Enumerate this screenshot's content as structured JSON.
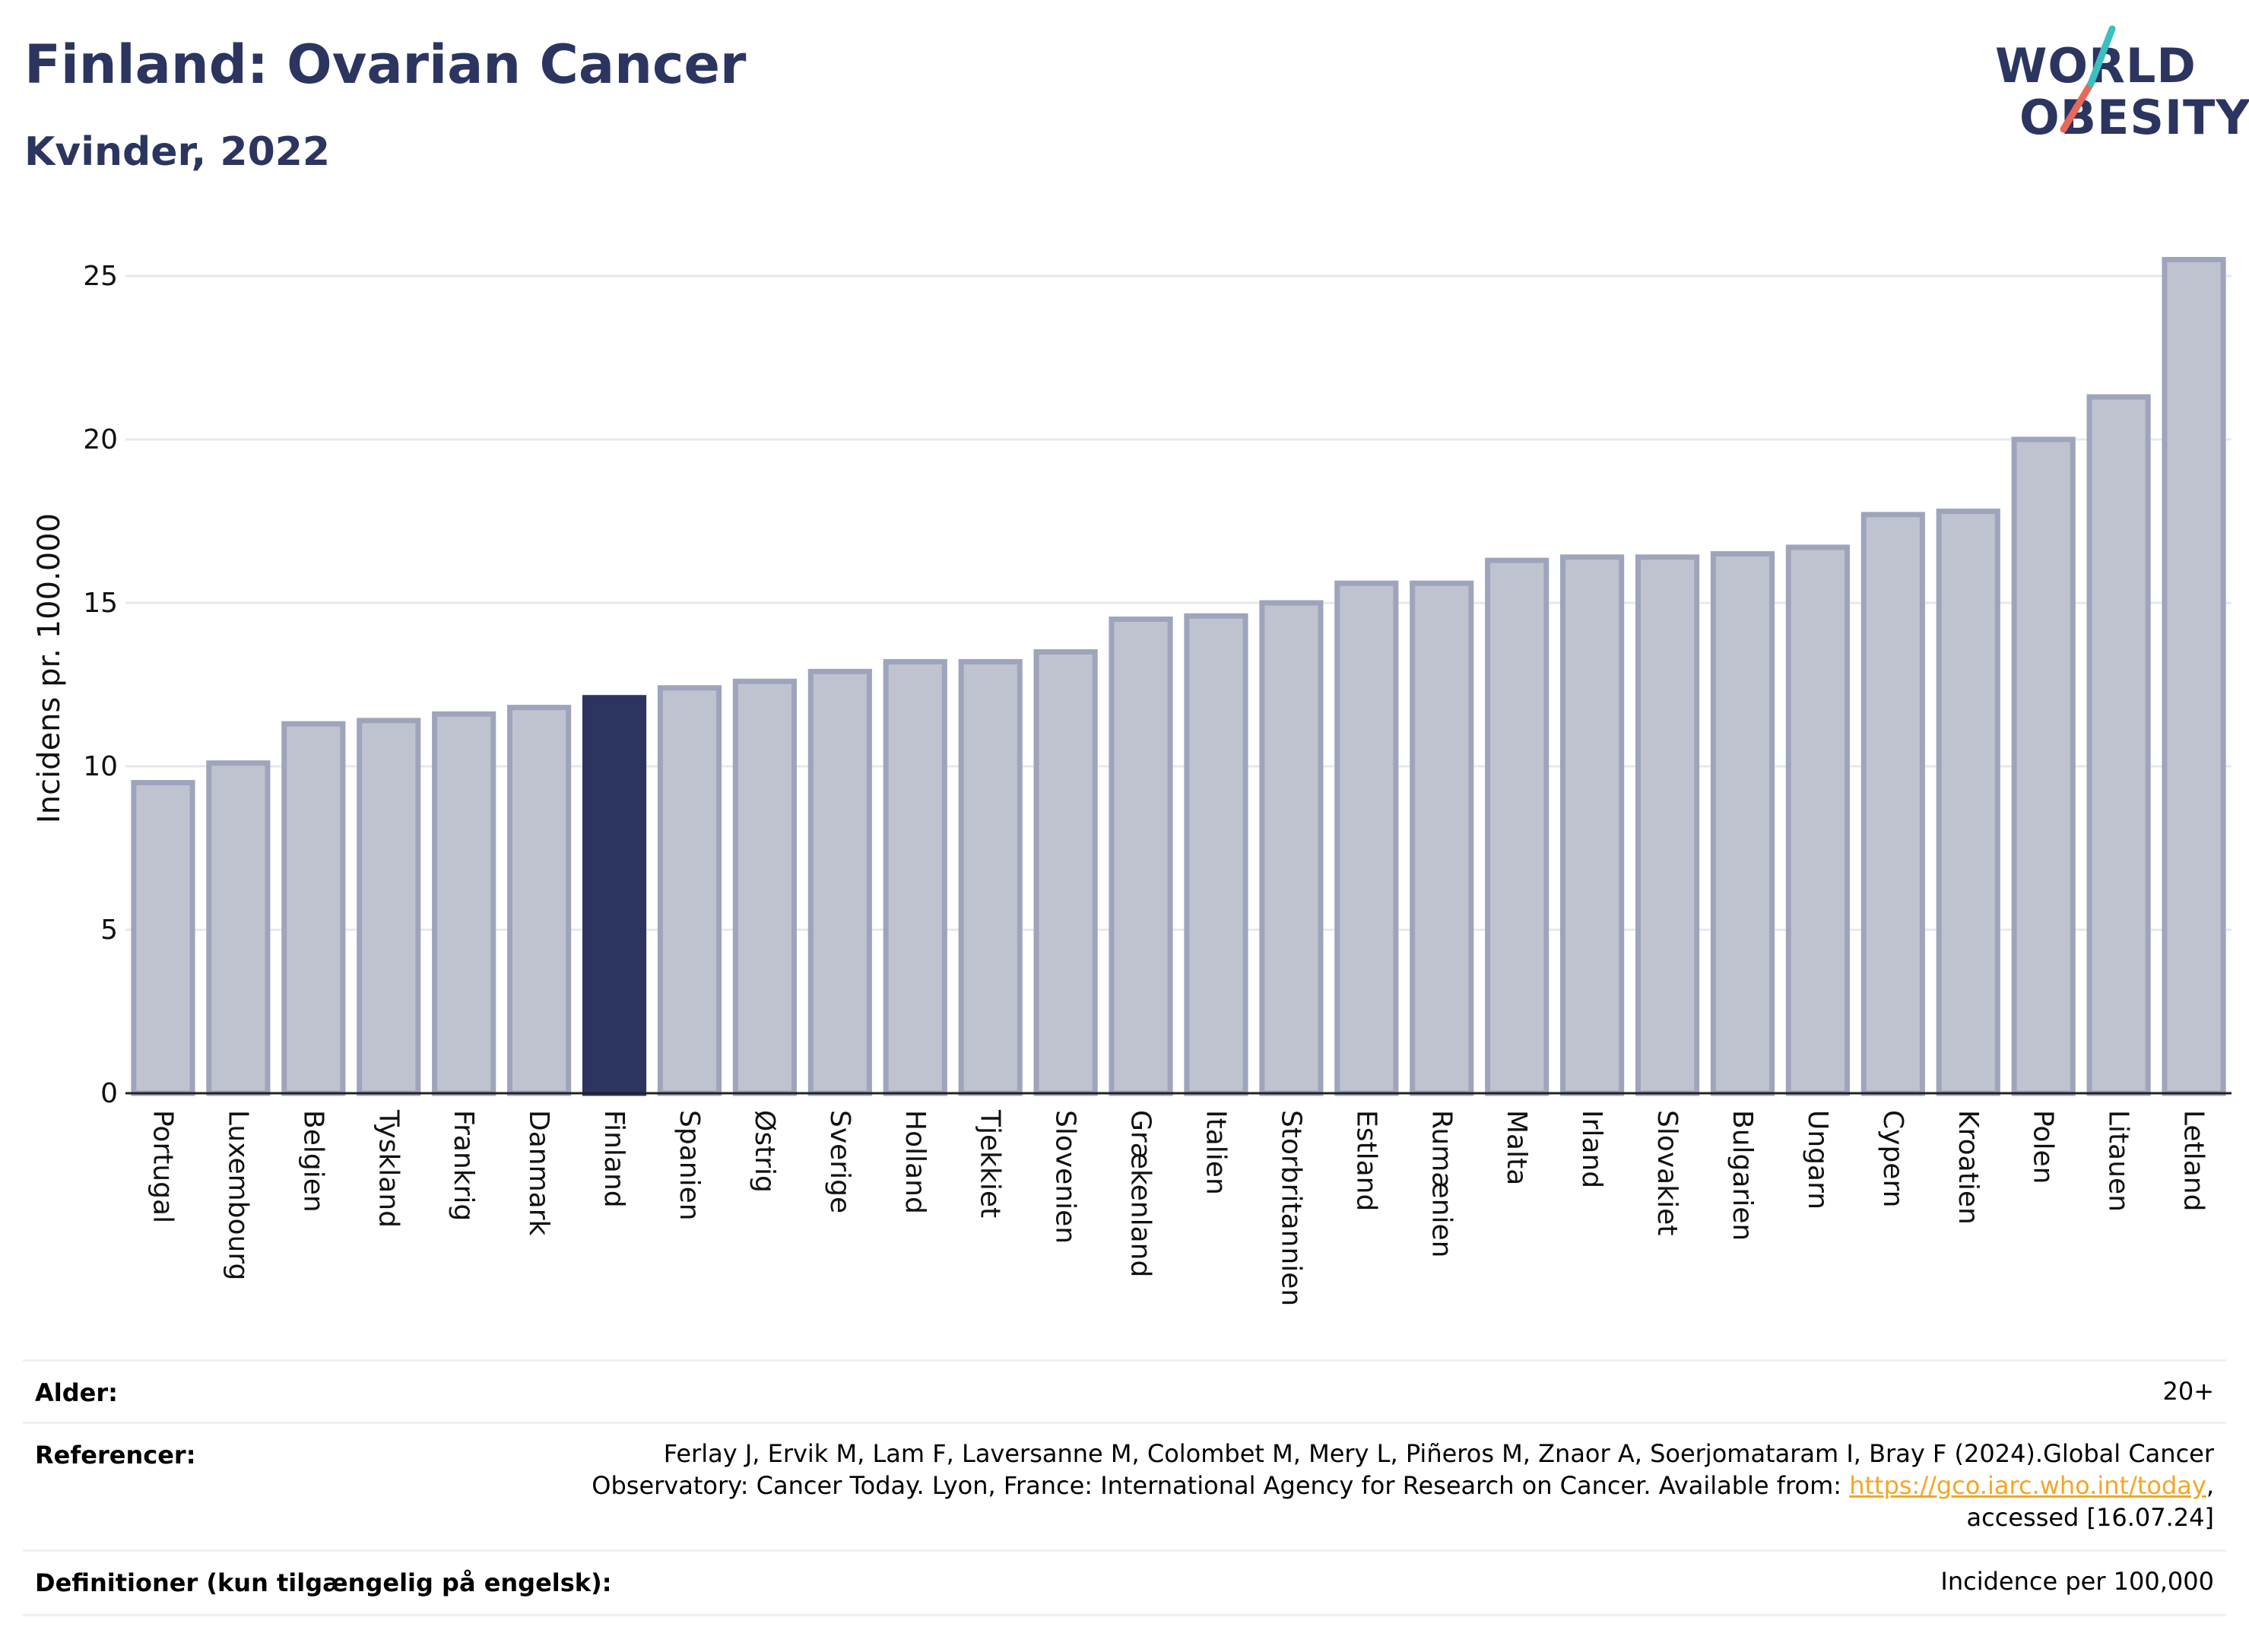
{
  "header": {
    "title": "Finland: Ovarian Cancer",
    "subtitle": "Kvinder, 2022"
  },
  "logo": {
    "line1": "WORLD",
    "line2": "OBESITY"
  },
  "colors": {
    "highlight": "#2b3560",
    "bar": "#bfc3d0",
    "bar_stroke": "#9ea4bc",
    "grid": "#e6e8f0"
  },
  "chart_data": {
    "type": "bar",
    "title": "Finland: Ovarian Cancer",
    "subtitle": "Kvinder, 2022",
    "xlabel": "",
    "ylabel": "Incidens pr. 100.000",
    "ylim": [
      0,
      26
    ],
    "yticks": [
      0,
      5,
      10,
      15,
      20,
      25
    ],
    "grid": true,
    "highlight": "Finland",
    "categories": [
      "Portugal",
      "Luxembourg",
      "Belgien",
      "Tyskland",
      "Frankrig",
      "Danmark",
      "Finland",
      "Spanien",
      "Østrig",
      "Sverige",
      "Holland",
      "Tjekkiet",
      "Slovenien",
      "Grækenland",
      "Italien",
      "Storbritannien",
      "Estland",
      "Rumænien",
      "Malta",
      "Irland",
      "Slovakiet",
      "Bulgarien",
      "Ungarn",
      "Cypern",
      "Kroatien",
      "Polen",
      "Litauen",
      "Letland"
    ],
    "values": [
      9.5,
      10.1,
      11.3,
      11.4,
      11.6,
      11.8,
      12.1,
      12.4,
      12.6,
      12.9,
      13.2,
      13.2,
      13.5,
      14.5,
      14.6,
      15.0,
      15.6,
      15.6,
      16.3,
      16.4,
      16.4,
      16.5,
      16.7,
      17.7,
      17.8,
      20.0,
      21.3,
      25.5
    ]
  },
  "info": {
    "age_label": "Alder:",
    "age_value": "20+",
    "ref_label": "Referencer:",
    "ref_line1": "Ferlay J, Ervik M, Lam F, Laversanne M, Colombet M, Mery L, Piñeros M, Znaor A, Soerjomataram I, Bray F (2024).Global Cancer",
    "ref_line2_pre": "Observatory: Cancer Today. Lyon, France: International Agency for Research on Cancer. Available from: ",
    "ref_link": "https://gco.iarc.who.int/today",
    "ref_line2_post": ",",
    "ref_line3": "accessed [16.07.24]",
    "def_label": "Definitioner (kun tilgængelig på engelsk):",
    "def_value": "Incidence per 100,000"
  }
}
